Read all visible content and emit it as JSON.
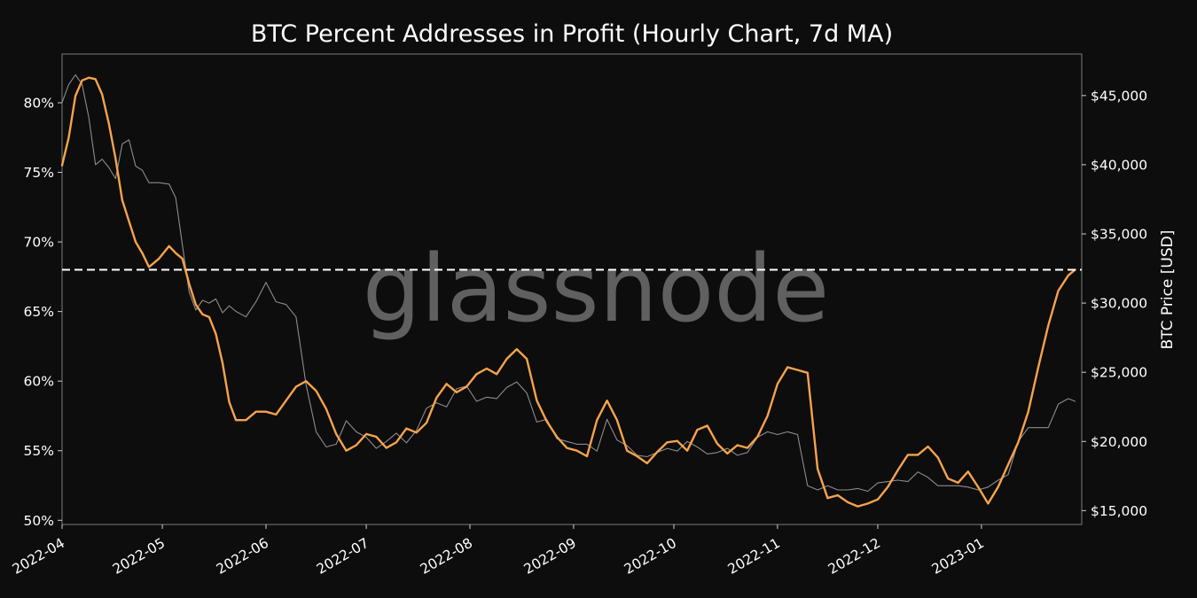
{
  "chart_data": {
    "type": "line",
    "title": "BTC Percent Addresses in Profit (Hourly Chart, 7d MA)",
    "watermark": "glassnode",
    "xlabel": "",
    "ylabel_left": "",
    "ylabel_right": "BTC Price [USD]",
    "x_ticks": [
      "2022-04",
      "2022-05",
      "2022-06",
      "2022-07",
      "2022-08",
      "2022-09",
      "2022-10",
      "2022-11",
      "2022-12",
      "2023-01"
    ],
    "y_left_ticks": [
      "50%",
      "55%",
      "60%",
      "65%",
      "70%",
      "75%",
      "80%"
    ],
    "y_right_ticks": [
      "$15,000",
      "$20,000",
      "$25,000",
      "$30,000",
      "$35,000",
      "$40,000",
      "$45,000"
    ],
    "ylim_left": [
      49.7,
      83.5
    ],
    "ylim_right": [
      14000,
      48000
    ],
    "xlim": [
      "2022-04-01",
      "2023-01-31"
    ],
    "reference_line": {
      "axis": "left",
      "value": 68.0,
      "style": "dashed",
      "color": "#ffffff"
    },
    "grid": false,
    "series": [
      {
        "axis": "left",
        "color": "#f7a34b",
        "x": [
          "2022-04-01",
          "2022-04-03",
          "2022-04-05",
          "2022-04-07",
          "2022-04-09",
          "2022-04-11",
          "2022-04-13",
          "2022-04-15",
          "2022-04-17",
          "2022-04-19",
          "2022-04-21",
          "2022-04-23",
          "2022-04-25",
          "2022-04-27",
          "2022-04-30",
          "2022-05-03",
          "2022-05-05",
          "2022-05-07",
          "2022-05-09",
          "2022-05-11",
          "2022-05-13",
          "2022-05-15",
          "2022-05-17",
          "2022-05-19",
          "2022-05-21",
          "2022-05-23",
          "2022-05-26",
          "2022-05-29",
          "2022-06-01",
          "2022-06-04",
          "2022-06-07",
          "2022-06-10",
          "2022-06-13",
          "2022-06-16",
          "2022-06-19",
          "2022-06-22",
          "2022-06-25",
          "2022-06-28",
          "2022-07-01",
          "2022-07-04",
          "2022-07-07",
          "2022-07-10",
          "2022-07-13",
          "2022-07-16",
          "2022-07-19",
          "2022-07-22",
          "2022-07-25",
          "2022-07-28",
          "2022-07-31",
          "2022-08-03",
          "2022-08-06",
          "2022-08-09",
          "2022-08-12",
          "2022-08-15",
          "2022-08-18",
          "2022-08-21",
          "2022-08-24",
          "2022-08-27",
          "2022-08-30",
          "2022-09-02",
          "2022-09-05",
          "2022-09-08",
          "2022-09-11",
          "2022-09-14",
          "2022-09-17",
          "2022-09-20",
          "2022-09-23",
          "2022-09-26",
          "2022-09-29",
          "2022-10-02",
          "2022-10-05",
          "2022-10-08",
          "2022-10-11",
          "2022-10-14",
          "2022-10-17",
          "2022-10-20",
          "2022-10-23",
          "2022-10-26",
          "2022-10-29",
          "2022-11-01",
          "2022-11-04",
          "2022-11-07",
          "2022-11-10",
          "2022-11-13",
          "2022-11-16",
          "2022-11-19",
          "2022-11-22",
          "2022-11-25",
          "2022-11-28",
          "2022-12-01",
          "2022-12-04",
          "2022-12-07",
          "2022-12-10",
          "2022-12-13",
          "2022-12-16",
          "2022-12-19",
          "2022-12-22",
          "2022-12-25",
          "2022-12-28",
          "2022-12-31",
          "2023-01-03",
          "2023-01-06",
          "2023-01-09",
          "2023-01-12",
          "2023-01-15",
          "2023-01-18",
          "2023-01-21",
          "2023-01-24",
          "2023-01-27",
          "2023-01-29"
        ],
        "values": [
          75.5,
          77.5,
          80.5,
          81.6,
          81.8,
          81.7,
          80.6,
          78.5,
          76.0,
          73.0,
          71.5,
          70.0,
          69.2,
          68.2,
          68.8,
          69.7,
          69.2,
          68.8,
          67.0,
          65.5,
          64.8,
          64.6,
          63.4,
          61.3,
          58.5,
          57.2,
          57.2,
          57.8,
          57.8,
          57.6,
          58.6,
          59.6,
          60.0,
          59.3,
          58.0,
          56.2,
          55.0,
          55.4,
          56.2,
          56.0,
          55.2,
          55.6,
          56.6,
          56.3,
          57.0,
          58.8,
          59.8,
          59.2,
          59.6,
          60.5,
          60.9,
          60.5,
          61.6,
          62.3,
          61.6,
          58.6,
          57.1,
          56.0,
          55.2,
          55.0,
          54.6,
          57.2,
          58.6,
          57.2,
          55.0,
          54.6,
          54.1,
          54.9,
          55.6,
          55.7,
          55.0,
          56.5,
          56.8,
          55.5,
          54.8,
          55.4,
          55.2,
          56.0,
          57.5,
          59.8,
          61.0,
          60.8,
          60.6,
          53.7,
          51.6,
          51.8,
          51.3,
          51.0,
          51.2,
          51.5,
          52.4,
          53.6,
          54.7,
          54.7,
          55.3,
          54.5,
          53.0,
          52.7,
          53.5,
          52.4,
          51.2,
          52.4,
          54.0,
          55.6,
          57.8,
          61.0,
          64.0,
          66.5,
          67.6,
          68.0
        ]
      },
      {
        "axis": "right",
        "color": "#9a9a9a",
        "x": [
          "2022-04-01",
          "2022-04-03",
          "2022-04-05",
          "2022-04-07",
          "2022-04-09",
          "2022-04-11",
          "2022-04-13",
          "2022-04-15",
          "2022-04-17",
          "2022-04-19",
          "2022-04-21",
          "2022-04-23",
          "2022-04-25",
          "2022-04-27",
          "2022-04-30",
          "2022-05-03",
          "2022-05-05",
          "2022-05-07",
          "2022-05-09",
          "2022-05-11",
          "2022-05-13",
          "2022-05-15",
          "2022-05-17",
          "2022-05-19",
          "2022-05-21",
          "2022-05-23",
          "2022-05-26",
          "2022-05-29",
          "2022-06-01",
          "2022-06-04",
          "2022-06-07",
          "2022-06-10",
          "2022-06-13",
          "2022-06-16",
          "2022-06-19",
          "2022-06-22",
          "2022-06-25",
          "2022-06-28",
          "2022-07-01",
          "2022-07-04",
          "2022-07-07",
          "2022-07-10",
          "2022-07-13",
          "2022-07-16",
          "2022-07-19",
          "2022-07-22",
          "2022-07-25",
          "2022-07-28",
          "2022-07-31",
          "2022-08-03",
          "2022-08-06",
          "2022-08-09",
          "2022-08-12",
          "2022-08-15",
          "2022-08-18",
          "2022-08-21",
          "2022-08-24",
          "2022-08-27",
          "2022-08-30",
          "2022-09-02",
          "2022-09-05",
          "2022-09-08",
          "2022-09-11",
          "2022-09-14",
          "2022-09-17",
          "2022-09-20",
          "2022-09-23",
          "2022-09-26",
          "2022-09-29",
          "2022-10-02",
          "2022-10-05",
          "2022-10-08",
          "2022-10-11",
          "2022-10-14",
          "2022-10-17",
          "2022-10-20",
          "2022-10-23",
          "2022-10-26",
          "2022-10-29",
          "2022-11-01",
          "2022-11-04",
          "2022-11-07",
          "2022-11-10",
          "2022-11-13",
          "2022-11-16",
          "2022-11-19",
          "2022-11-22",
          "2022-11-25",
          "2022-11-28",
          "2022-12-01",
          "2022-12-04",
          "2022-12-07",
          "2022-12-10",
          "2022-12-13",
          "2022-12-16",
          "2022-12-19",
          "2022-12-22",
          "2022-12-25",
          "2022-12-28",
          "2022-12-31",
          "2023-01-03",
          "2023-01-06",
          "2023-01-09",
          "2023-01-12",
          "2023-01-15",
          "2023-01-18",
          "2023-01-21",
          "2023-01-24",
          "2023-01-27",
          "2023-01-29"
        ],
        "values": [
          44500,
          45800,
          46500,
          45800,
          43400,
          40000,
          40400,
          39800,
          39000,
          41500,
          41800,
          39900,
          39600,
          38700,
          38700,
          38600,
          37600,
          34200,
          30800,
          29500,
          30200,
          30000,
          30300,
          29300,
          29800,
          29400,
          29000,
          30100,
          31500,
          30100,
          29900,
          29000,
          24100,
          20700,
          19600,
          19800,
          21500,
          20700,
          20300,
          19500,
          20000,
          20600,
          19900,
          20800,
          22400,
          22800,
          22500,
          23800,
          24000,
          22900,
          23200,
          23100,
          23900,
          24300,
          23500,
          21400,
          21600,
          20200,
          20000,
          19800,
          19800,
          19300,
          21600,
          20100,
          19700,
          19000,
          18900,
          19200,
          19500,
          19300,
          20000,
          19600,
          19100,
          19200,
          19500,
          19000,
          19200,
          20300,
          20700,
          20500,
          20700,
          20500,
          16800,
          16500,
          16800,
          16500,
          16500,
          16600,
          16400,
          17000,
          17100,
          17200,
          17100,
          17800,
          17400,
          16800,
          16800,
          16800,
          16700,
          16500,
          16700,
          17200,
          17600,
          20000,
          21000,
          21000,
          21000,
          22700,
          23100,
          22900
        ]
      }
    ]
  }
}
